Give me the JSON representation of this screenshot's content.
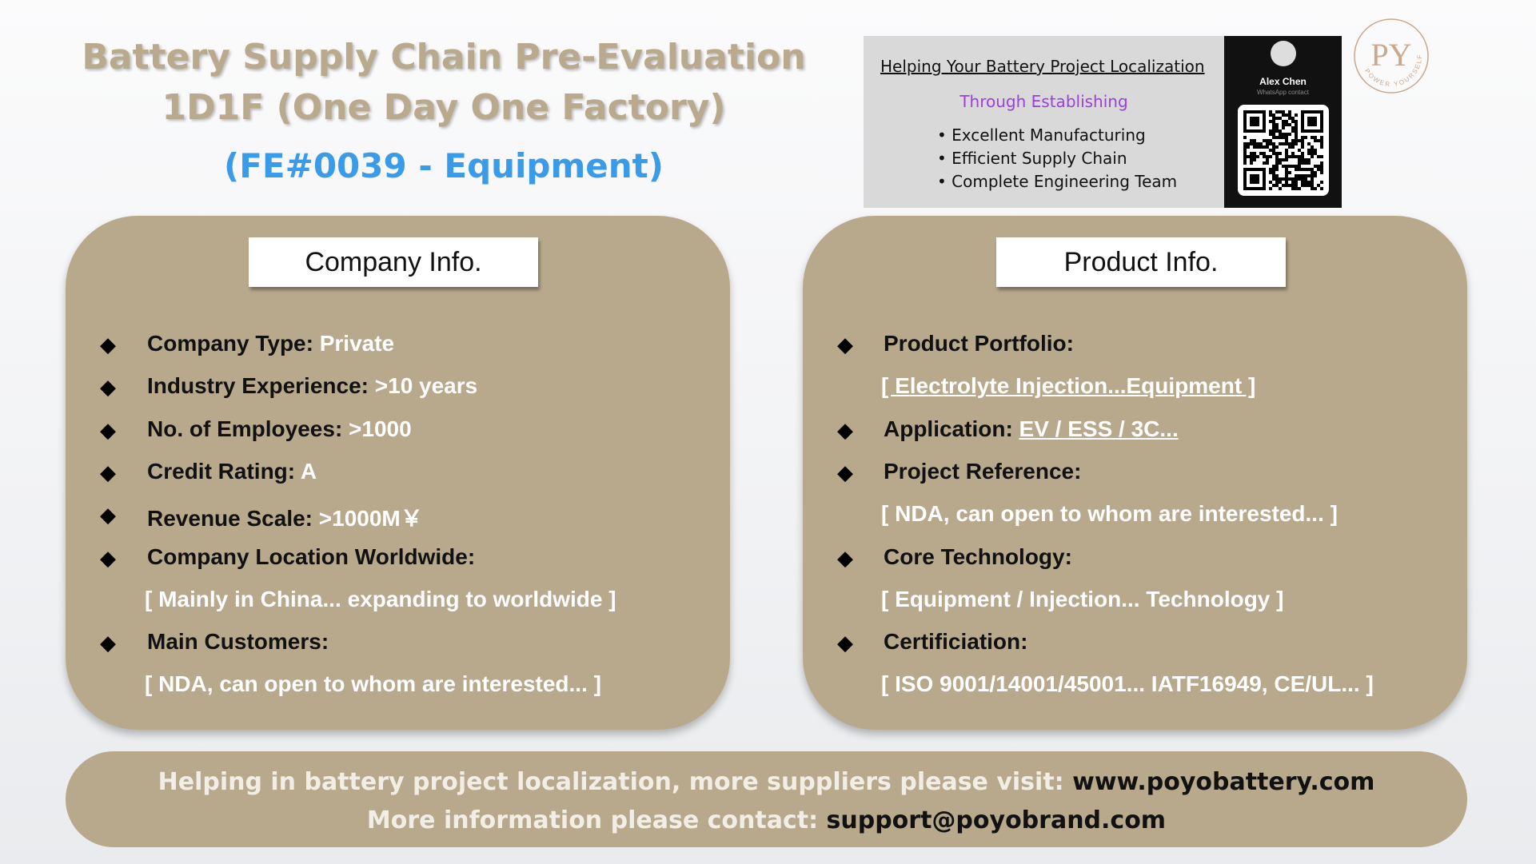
{
  "header": {
    "title_lines": [
      "Battery Supply Chain Pre-Evaluation",
      "1D1F (One Day One Factory)"
    ],
    "subtitle": "(FE#0039 - Equipment)"
  },
  "contact_card": {
    "heading": "Helping Your Battery Project Localization",
    "subheading": "Through Establishing",
    "bullets": [
      "Excellent Manufacturing",
      "Efficient Supply Chain",
      "Complete Engineering Team"
    ],
    "name": "Alex Chen",
    "caption": "WhatsApp contact"
  },
  "logo": {
    "monogram": "PY",
    "ring_text": "POWER YOURSELF"
  },
  "company_info": {
    "title": "Company Info.",
    "items": [
      {
        "label": "Company Type:",
        "value": "Private"
      },
      {
        "label": "Industry Experience:",
        "value": ">10 years"
      },
      {
        "label": "No. of Employees:",
        "value": ">1000"
      },
      {
        "label": "Credit Rating:",
        "value": "A"
      },
      {
        "label": "Revenue Scale:",
        "value": ">1000M￥"
      },
      {
        "label": "Company Location Worldwide:",
        "detail": "[ Mainly in China... expanding to worldwide ]"
      },
      {
        "label": "Main Customers:",
        "detail": "[ NDA, can open to whom are interested... ]"
      }
    ]
  },
  "product_info": {
    "title": "Product Info.",
    "items": [
      {
        "label": "Product Portfolio:",
        "detail": "[ Electrolyte Injection...Equipment ]"
      },
      {
        "label": "Application:",
        "value": "EV / ESS / 3C..."
      },
      {
        "label": "Project Reference:",
        "detail": "[ NDA, can open to whom are interested...  ]"
      },
      {
        "label": "Core Technology:",
        "detail": "[ Equipment / Injection... Technology ]"
      },
      {
        "label": "Certificiation:",
        "detail": "[ ISO 9001/14001/45001... IATF16949, CE/UL... ]"
      }
    ]
  },
  "footer": {
    "lines": [
      {
        "text": "Helping in battery project localization, more suppliers please visit:",
        "link": "www.poyobattery.com"
      },
      {
        "text": "More information please contact:",
        "link": "support@poyobrand.com"
      }
    ]
  }
}
